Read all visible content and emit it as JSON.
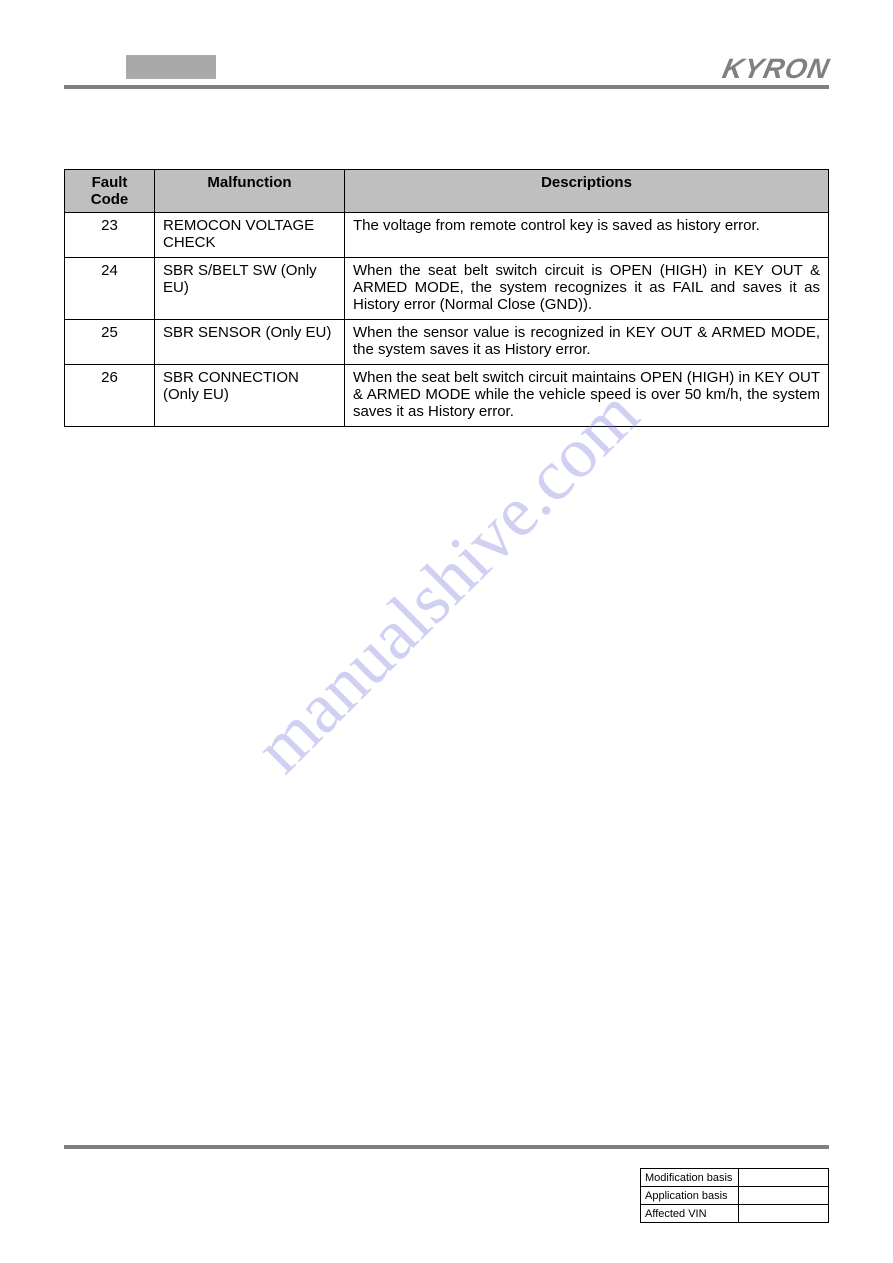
{
  "header": {
    "brand": "KYRON"
  },
  "watermark": "manualshive.com",
  "fault_table": {
    "columns": [
      "Fault Code",
      "Malfunction",
      "Descriptions"
    ],
    "rows": [
      {
        "code": "23",
        "malfunction": "REMOCON VOLTAGE CHECK",
        "description": "The voltage from remote control key is saved as history error."
      },
      {
        "code": "24",
        "malfunction": "SBR S/BELT SW (Only EU)",
        "description": "When the seat belt switch circuit is OPEN (HIGH) in KEY OUT & ARMED MODE, the system recognizes it as FAIL and saves it as History error (Normal Close (GND))."
      },
      {
        "code": "25",
        "malfunction": "SBR SENSOR (Only EU)",
        "description": "When the sensor value is recognized in KEY OUT & ARMED MODE, the system saves it as History error."
      },
      {
        "code": "26",
        "malfunction": "SBR CONNECTION (Only EU)",
        "description": "When the seat belt switch circuit maintains OPEN (HIGH) in KEY OUT & ARMED MODE while the vehicle speed is over 50 km/h, the system saves it as History error."
      }
    ]
  },
  "footer": {
    "rows": [
      {
        "label": "Modification basis",
        "value": ""
      },
      {
        "label": "Application basis",
        "value": ""
      },
      {
        "label": "Affected VIN",
        "value": ""
      }
    ]
  }
}
